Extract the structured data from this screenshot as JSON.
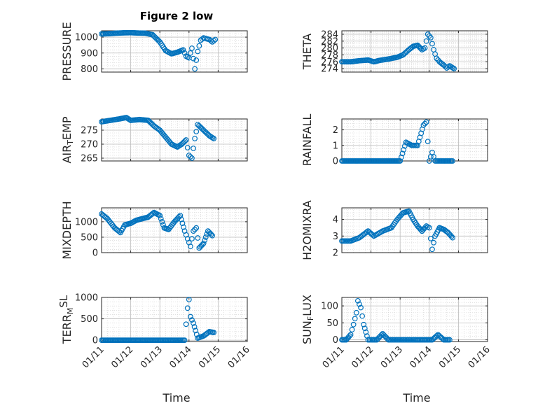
{
  "title": "Figure 2 low",
  "chart_data": [
    {
      "type": "scatter",
      "ylabel": "PRESSURE",
      "ylim": [
        780,
        1040
      ],
      "yticks": [
        800,
        900,
        1000
      ],
      "xlim": [
        0,
        5
      ],
      "xticks": [
        "01/11",
        "01/12",
        "01/13",
        "01/14",
        "01/15",
        "01/16"
      ],
      "grid": true,
      "x": [
        0,
        0.25,
        0.5,
        0.75,
        1.0,
        1.25,
        1.5,
        1.75,
        2.0,
        2.2,
        2.4,
        2.6,
        2.8,
        2.9,
        3.0,
        3.1,
        3.2,
        3.3,
        3.4,
        3.5,
        3.6,
        3.7,
        3.8,
        3.9
      ],
      "y": [
        1020,
        1022,
        1025,
        1027,
        1028,
        1026,
        1025,
        1015,
        970,
        915,
        895,
        905,
        920,
        880,
        870,
        930,
        800,
        910,
        980,
        995,
        990,
        985,
        970,
        985
      ]
    },
    {
      "type": "scatter",
      "ylabel": "THETA",
      "ylim": [
        273,
        285
      ],
      "yticks": [
        274,
        276,
        278,
        280,
        282,
        284
      ],
      "xlim": [
        0,
        5
      ],
      "xticks": [
        "01/11",
        "01/12",
        "01/13",
        "01/14",
        "01/15",
        "01/16"
      ],
      "grid": true,
      "x": [
        0,
        0.3,
        0.6,
        0.9,
        1.1,
        1.3,
        1.6,
        1.9,
        2.1,
        2.3,
        2.45,
        2.6,
        2.75,
        2.85,
        2.95,
        3.05,
        3.15,
        3.25,
        3.35,
        3.5,
        3.6,
        3.7,
        3.85
      ],
      "y": [
        276,
        276,
        276.3,
        276.5,
        276,
        276.4,
        276.8,
        277.3,
        278,
        279.5,
        280.5,
        280.8,
        279.5,
        280,
        284,
        283,
        279.5,
        277,
        276,
        275,
        274.2,
        274.8,
        274
      ]
    },
    {
      "type": "scatter",
      "ylabel": "AIR_TEMP",
      "ylim": [
        264,
        279
      ],
      "yticks": [
        265,
        270,
        275
      ],
      "xlim": [
        0,
        5
      ],
      "xticks": [
        "01/11",
        "01/12",
        "01/13",
        "01/14",
        "01/15",
        "01/16"
      ],
      "grid": true,
      "x": [
        0,
        0.3,
        0.6,
        0.85,
        1.0,
        1.3,
        1.6,
        1.8,
        2.0,
        2.2,
        2.4,
        2.6,
        2.75,
        2.9,
        3.0,
        3.1,
        3.2,
        3.3,
        3.5,
        3.7,
        3.85
      ],
      "y": [
        278,
        278.5,
        279,
        279.5,
        278.5,
        278.8,
        278.5,
        276.5,
        275,
        272.5,
        270,
        269,
        270,
        271.5,
        266,
        265,
        272,
        277,
        275,
        273,
        272
      ]
    },
    {
      "type": "scatter",
      "ylabel": "RAINFALL",
      "ylim": [
        0,
        2.7
      ],
      "yticks": [
        0,
        1,
        2
      ],
      "xlim": [
        0,
        5
      ],
      "xticks": [
        "01/11",
        "01/12",
        "01/13",
        "01/14",
        "01/15",
        "01/16"
      ],
      "grid": true,
      "x": [
        0,
        0.5,
        1.0,
        1.5,
        2.0,
        2.2,
        2.4,
        2.6,
        2.8,
        2.9,
        3.0,
        3.1,
        3.2,
        3.5,
        3.8
      ],
      "y": [
        0,
        0,
        0,
        0,
        0,
        1.2,
        1.0,
        1.0,
        2.3,
        2.5,
        0,
        0.55,
        0,
        0,
        0
      ]
    },
    {
      "type": "scatter",
      "ylabel": "MIXDEPTH",
      "ylim": [
        0,
        1450
      ],
      "yticks": [
        0,
        500,
        1000
      ],
      "xlim": [
        0,
        5
      ],
      "xticks": [
        "01/11",
        "01/12",
        "01/13",
        "01/14",
        "01/15",
        "01/16"
      ],
      "grid": true,
      "x": [
        0,
        0.2,
        0.45,
        0.65,
        0.8,
        1.0,
        1.2,
        1.4,
        1.6,
        1.8,
        2.0,
        2.15,
        2.3,
        2.5,
        2.7,
        2.85,
        2.95,
        3.05,
        3.15,
        3.25,
        3.35,
        3.5,
        3.65,
        3.8
      ],
      "y": [
        1250,
        1100,
        800,
        650,
        900,
        950,
        1050,
        1100,
        1150,
        1300,
        1200,
        800,
        750,
        1000,
        1200,
        700,
        450,
        200,
        700,
        800,
        150,
        300,
        700,
        550
      ]
    },
    {
      "type": "scatter",
      "ylabel": "H2OMIXRA",
      "ylim": [
        2,
        4.7
      ],
      "yticks": [
        2,
        3,
        4
      ],
      "xlim": [
        0,
        5
      ],
      "xticks": [
        "01/11",
        "01/12",
        "01/13",
        "01/14",
        "01/15",
        "01/16"
      ],
      "grid": true,
      "x": [
        0,
        0.3,
        0.6,
        0.9,
        1.1,
        1.4,
        1.7,
        1.9,
        2.1,
        2.3,
        2.45,
        2.6,
        2.75,
        2.9,
        3.0,
        3.1,
        3.2,
        3.35,
        3.5,
        3.65,
        3.8
      ],
      "y": [
        2.7,
        2.7,
        2.9,
        3.3,
        3.0,
        3.3,
        3.5,
        4.0,
        4.4,
        4.5,
        4.0,
        3.6,
        3.3,
        3.6,
        3.5,
        2.2,
        3.0,
        3.5,
        3.4,
        3.2,
        2.9
      ]
    },
    {
      "type": "scatter",
      "ylabel": "TERR_MSL",
      "ylim": [
        -30,
        1000
      ],
      "yticks": [
        0,
        500,
        1000
      ],
      "xlim": [
        0,
        5
      ],
      "xticks": [
        "01/11",
        "01/12",
        "01/13",
        "01/14",
        "01/15",
        "01/16"
      ],
      "grid": true,
      "x": [
        0,
        0.5,
        1.0,
        1.5,
        2.0,
        2.5,
        2.85,
        2.95,
        3.0,
        3.05,
        3.15,
        3.3,
        3.5,
        3.7,
        3.85
      ],
      "y": [
        0,
        0,
        0,
        0,
        0,
        0,
        0,
        750,
        950,
        550,
        400,
        50,
        100,
        200,
        180
      ]
    },
    {
      "type": "scatter",
      "ylabel": "SUN_FLUX",
      "ylim": [
        -5,
        125
      ],
      "yticks": [
        0,
        50,
        100
      ],
      "xlim": [
        0,
        5
      ],
      "xticks": [
        "01/11",
        "01/12",
        "01/13",
        "01/14",
        "01/15",
        "01/16"
      ],
      "grid": true,
      "x": [
        0,
        0.15,
        0.3,
        0.4,
        0.5,
        0.55,
        0.65,
        0.75,
        0.9,
        1.0,
        1.2,
        1.4,
        1.6,
        1.9,
        2.2,
        2.5,
        2.7,
        2.9,
        3.1,
        3.3,
        3.5,
        3.7
      ],
      "y": [
        0,
        0,
        15,
        45,
        80,
        115,
        95,
        45,
        0,
        0,
        0,
        18,
        0,
        0,
        0,
        0,
        0,
        0,
        0,
        15,
        0,
        0
      ]
    }
  ],
  "xlabel": "Time"
}
